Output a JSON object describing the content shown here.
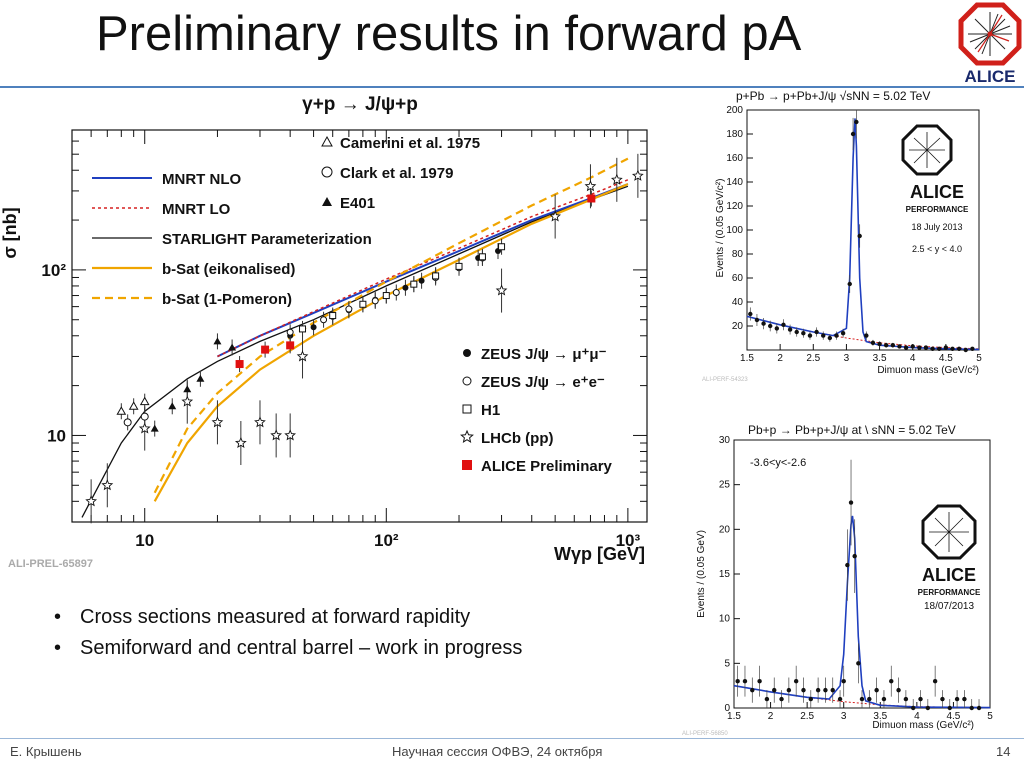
{
  "slide": {
    "title": "Preliminary results in forward pA",
    "bullets": [
      "Cross sections measured at forward rapidity",
      "Semiforward and central barrel – work in progress"
    ],
    "footer": {
      "author": "Е. Крышень",
      "event": "Научная сессия ОФВЭ, 24 октября",
      "page": "14"
    },
    "logo_text": "ALICE"
  },
  "chart_data": [
    {
      "type": "scatter",
      "title": "γ+p → J/ψ+p",
      "xlabel": "Wγp [GeV]",
      "ylabel": "σ [nb]",
      "x_scale": "log",
      "y_scale": "log",
      "x_ticks": [
        "10",
        "10²",
        "10³"
      ],
      "y_ticks": [
        "10",
        "10²"
      ],
      "xlim": [
        5,
        1200
      ],
      "ylim": [
        3,
        700
      ],
      "watermark": "ALI-PREL-65897",
      "legend_left": [
        "MNRT NLO",
        "MNRT LO",
        "STARLIGHT Parameterization",
        "b-Sat (eikonalised)",
        "b-Sat (1-Pomeron)"
      ],
      "legend_right_top": [
        "Camerini et al. 1975",
        "Clark et al. 1979",
        "E401"
      ],
      "legend_right_bottom": [
        "ZEUS J/ψ → μ⁺μ⁻",
        "ZEUS J/ψ → e⁺e⁻",
        "H1",
        "LHCb (pp)",
        "ALICE Preliminary"
      ],
      "colors": {
        "mnrt_nlo": "#1f3fbf",
        "mnrt_lo": "#d62020",
        "starlight": "#111111",
        "bsat": "#f0a500",
        "alice": "#e01010",
        "data": "#111111"
      },
      "series": [
        {
          "name": "MNRT NLO",
          "x": [
            20,
            30,
            50,
            100,
            200,
            400,
            700,
            1000
          ],
          "y": [
            30,
            40,
            55,
            85,
            130,
            200,
            270,
            330
          ]
        },
        {
          "name": "MNRT LO",
          "x": [
            20,
            30,
            50,
            100,
            200,
            400,
            700,
            1000
          ],
          "y": [
            30,
            40,
            56,
            88,
            135,
            210,
            285,
            350
          ]
        },
        {
          "name": "STARLIGHT Parameterization",
          "x": [
            5.5,
            8,
            10,
            15,
            20,
            30,
            50,
            100,
            200,
            400,
            700,
            1000
          ],
          "y": [
            3.2,
            9,
            14,
            22,
            28,
            37,
            50,
            80,
            125,
            195,
            265,
            320
          ]
        },
        {
          "name": "b-Sat (eikonalised)",
          "x": [
            11,
            15,
            20,
            30,
            50,
            100,
            200,
            400,
            700,
            1000
          ],
          "y": [
            4,
            9,
            15,
            25,
            40,
            70,
            115,
            190,
            265,
            330
          ]
        },
        {
          "name": "b-Sat (1-Pomeron)",
          "x": [
            11,
            15,
            20,
            30,
            50,
            100,
            200,
            400,
            700,
            1000
          ],
          "y": [
            4.5,
            11,
            18,
            30,
            48,
            85,
            145,
            245,
            360,
            470
          ]
        },
        {
          "name": "ZEUS J/ψ → μ⁺μ⁻",
          "x": [
            40,
            50,
            60,
            70,
            80,
            90,
            100,
            120,
            140,
            160,
            200,
            240,
            290
          ],
          "y": [
            40,
            45,
            52,
            57,
            62,
            66,
            70,
            78,
            86,
            93,
            106,
            118,
            130
          ]
        },
        {
          "name": "ZEUS J/ψ → e⁺e⁻",
          "x": [
            40,
            55,
            70,
            90,
            110,
            130,
            160,
            200,
            250
          ],
          "y": [
            42,
            50,
            58,
            65,
            73,
            82,
            90,
            103,
            118
          ]
        },
        {
          "name": "H1",
          "x": [
            45,
            60,
            80,
            100,
            130,
            160,
            200,
            250,
            300
          ],
          "y": [
            44,
            53,
            62,
            70,
            82,
            92,
            105,
            120,
            138
          ]
        },
        {
          "name": "LHCb (pp)",
          "x": [
            6,
            7,
            10,
            15,
            20,
            25,
            30,
            35,
            40,
            45,
            300,
            500,
            700,
            900,
            1100
          ],
          "y": [
            4,
            5,
            11,
            16,
            12,
            9,
            12,
            10,
            10,
            30,
            75,
            210,
            320,
            350,
            370
          ]
        },
        {
          "name": "ALICE Preliminary",
          "x": [
            24.7,
            31.5,
            40,
            706
          ],
          "y": [
            27,
            33,
            35,
            270
          ]
        },
        {
          "name": "E401",
          "x": [
            11,
            13,
            15,
            17,
            20,
            23
          ],
          "y": [
            11,
            15,
            19,
            22,
            37,
            34
          ]
        },
        {
          "name": "Camerini et al. 1975",
          "x": [
            8,
            9,
            10
          ],
          "y": [
            14,
            15,
            16
          ]
        },
        {
          "name": "Clark et al. 1979",
          "x": [
            8.5,
            10
          ],
          "y": [
            12,
            13
          ]
        }
      ]
    },
    {
      "type": "line",
      "title": "p+Pb → p+Pb+J/ψ √sNN = 5.02 TeV",
      "xlabel": "Dimuon mass (GeV/c²)",
      "ylabel": "Events / (0.05 GeV/c²)",
      "xlim": [
        1.5,
        5
      ],
      "ylim": [
        0,
        200
      ],
      "x_ticks": [
        "1.5",
        "2",
        "2.5",
        "3",
        "3.5",
        "4",
        "4.5",
        "5"
      ],
      "y_ticks": [
        "20",
        "40",
        "60",
        "80",
        "100",
        "120",
        "140",
        "160",
        "180",
        "200"
      ],
      "badge": {
        "logo": "ALICE",
        "label": "PERFORMANCE",
        "date": "18 July 2013",
        "note": "2.5 < y < 4.0"
      },
      "watermark": "ALI-PERF-54323",
      "series": [
        {
          "name": "data",
          "x": [
            1.55,
            1.65,
            1.75,
            1.85,
            1.95,
            2.05,
            2.15,
            2.25,
            2.35,
            2.45,
            2.55,
            2.65,
            2.75,
            2.85,
            2.95,
            3.05,
            3.1,
            3.15,
            3.2,
            3.3,
            3.4,
            3.5,
            3.6,
            3.7,
            3.8,
            3.9,
            4.0,
            4.1,
            4.2,
            4.3,
            4.4,
            4.5,
            4.6,
            4.7,
            4.8,
            4.9
          ],
          "y": [
            30,
            25,
            22,
            20,
            18,
            21,
            17,
            15,
            14,
            12,
            15,
            12,
            10,
            12,
            14,
            55,
            180,
            190,
            95,
            12,
            6,
            5,
            4,
            4,
            3,
            2,
            3,
            2,
            2,
            1,
            1,
            2,
            1,
            1,
            0,
            1
          ]
        },
        {
          "name": "fit",
          "x": [
            1.5,
            2.0,
            2.5,
            2.8,
            3.0,
            3.05,
            3.1,
            3.13,
            3.15,
            3.2,
            3.25,
            3.3,
            3.5,
            4.0,
            4.5,
            5.0
          ],
          "y": [
            28,
            21,
            15,
            12,
            18,
            60,
            160,
            193,
            170,
            60,
            15,
            7,
            4,
            2,
            1,
            0.5
          ]
        },
        {
          "name": "background",
          "x": [
            1.5,
            2.0,
            2.5,
            3.0,
            3.5,
            4.0,
            4.5,
            5.0
          ],
          "y": [
            28,
            21,
            15,
            10,
            6,
            3.5,
            2,
            1
          ]
        }
      ]
    },
    {
      "type": "line",
      "title": "Pb+p → Pb+p+J/ψ at \\ sNN = 5.02 TeV",
      "xlabel": "Dimuon mass (GeV/c²)",
      "ylabel": "Events / (0.05 GeV)",
      "xlim": [
        1.5,
        5
      ],
      "ylim": [
        0,
        30
      ],
      "x_ticks": [
        "1.5",
        "2",
        "2.5",
        "3",
        "3.5",
        "4",
        "4.5",
        "5"
      ],
      "y_ticks": [
        "0",
        "5",
        "10",
        "15",
        "20",
        "25",
        "30"
      ],
      "annotation": "-3.6<y<-2.6",
      "badge": {
        "logo": "ALICE",
        "label": "PERFORMANCE",
        "date": "18/07/2013"
      },
      "watermark": "ALI-PERF-56850",
      "series": [
        {
          "name": "data",
          "x": [
            1.55,
            1.65,
            1.75,
            1.85,
            1.95,
            2.05,
            2.15,
            2.25,
            2.35,
            2.45,
            2.55,
            2.65,
            2.75,
            2.85,
            2.95,
            3.0,
            3.05,
            3.1,
            3.15,
            3.2,
            3.25,
            3.35,
            3.45,
            3.55,
            3.65,
            3.75,
            3.85,
            3.95,
            4.05,
            4.15,
            4.25,
            4.35,
            4.45,
            4.55,
            4.65,
            4.75,
            4.85
          ],
          "y": [
            3,
            3,
            2,
            3,
            1,
            2,
            1,
            2,
            3,
            2,
            1,
            2,
            2,
            2,
            1,
            3,
            16,
            23,
            17,
            5,
            1,
            1,
            2,
            1,
            3,
            2,
            1,
            0,
            1,
            0,
            3,
            1,
            0,
            1,
            1,
            0,
            0
          ]
        },
        {
          "name": "fit",
          "x": [
            1.5,
            2.0,
            2.5,
            2.8,
            2.95,
            3.0,
            3.05,
            3.1,
            3.12,
            3.15,
            3.2,
            3.25,
            3.3,
            3.5,
            4.0,
            5.0
          ],
          "y": [
            2.5,
            1.8,
            1.2,
            1.0,
            2.5,
            6,
            14,
            20.5,
            21.5,
            19,
            8,
            2.5,
            0.8,
            0.3,
            0.1,
            0.05
          ]
        },
        {
          "name": "background",
          "x": [
            1.5,
            2.0,
            2.5,
            3.0,
            3.5,
            4.0,
            5.0
          ],
          "y": [
            2.5,
            1.8,
            1.2,
            0.7,
            0.35,
            0.15,
            0.05
          ]
        }
      ]
    }
  ]
}
